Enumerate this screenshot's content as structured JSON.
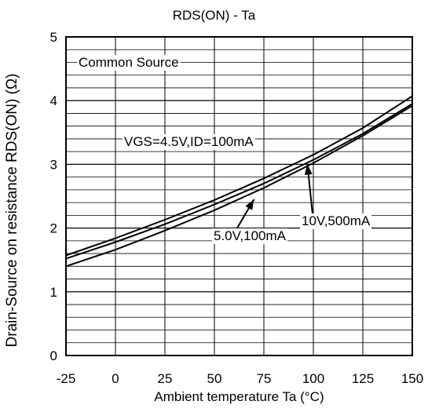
{
  "chart_data": {
    "type": "line",
    "title": "RDS(ON) - Ta",
    "xlabel": "Ambient temperature  Ta (°C)",
    "ylabel": "Drain-Source on resistance RDS(ON) (Ω)",
    "xlim": [
      -25,
      150
    ],
    "ylim": [
      0,
      5
    ],
    "xticks": [
      "-25",
      "0",
      "25",
      "50",
      "75",
      "100",
      "125",
      "150"
    ],
    "yticks": [
      "0",
      "1",
      "2",
      "3",
      "4",
      "5"
    ],
    "grid": true,
    "annotation": "Common Source",
    "series": [
      {
        "name": "VGS=4.5V,ID=100mA",
        "x": [
          -25,
          0,
          25,
          50,
          75,
          100,
          125,
          150
        ],
        "values": [
          1.57,
          1.84,
          2.13,
          2.44,
          2.78,
          3.15,
          3.57,
          4.07
        ]
      },
      {
        "name": "5.0V,100mA",
        "x": [
          -25,
          0,
          25,
          50,
          75,
          100,
          125,
          150
        ],
        "values": [
          1.52,
          1.78,
          2.06,
          2.37,
          2.7,
          3.07,
          3.48,
          3.95
        ]
      },
      {
        "name": "10V,500mA",
        "x": [
          -25,
          0,
          25,
          50,
          75,
          100,
          125,
          150
        ],
        "values": [
          1.4,
          1.66,
          1.96,
          2.28,
          2.63,
          3.02,
          3.45,
          3.92
        ]
      }
    ]
  }
}
